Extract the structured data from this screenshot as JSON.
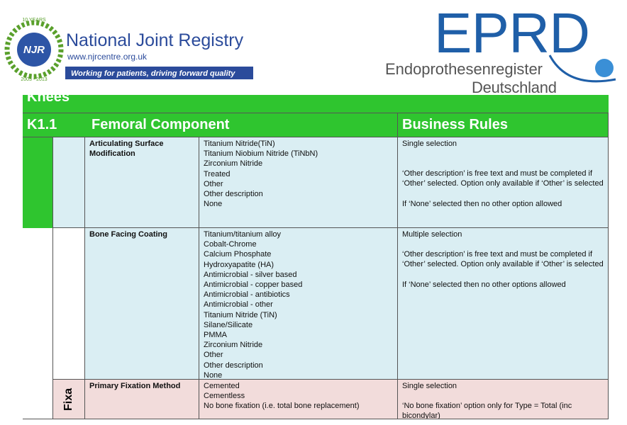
{
  "header": {
    "njr": {
      "years": "10 YEARS",
      "badge": "NJR",
      "dates": "2003 - 2013",
      "name": "National Joint Registry",
      "url": "www.njrcentre.org.uk",
      "tagline": "Working for patients, driving forward quality"
    },
    "eprd": {
      "name": "EPRD",
      "line1": "Endoprothesenregister",
      "line2": "Deutschland"
    }
  },
  "table": {
    "section": "Knees",
    "code": "K1.1",
    "title": "Femoral Component",
    "rules_header": "Business Rules",
    "rows": [
      {
        "field": "Articulating Surface Modification",
        "options": [
          "Titanium Nitride(TiN)",
          "Titanium Niobium Nitride (TiNbN)",
          "Zirconium Nitride",
          "Treated",
          "Other",
          "Other description",
          "None"
        ],
        "rules": [
          "Single selection",
          "‘Other description’ is free text and must be completed if ‘Other’ selected. Option only available if ‘Other’ is selected",
          "If ‘None’ selected then no other option allowed"
        ]
      },
      {
        "field": "Bone Facing Coating",
        "options": [
          "Titanium/titanium alloy",
          "Cobalt-Chrome",
          "Calcium Phosphate",
          "Hydroxyapatite (HA)",
          "Antimicrobial - silver based",
          "Antimicrobial - copper based",
          "Antimicrobial - antibiotics",
          "Antimicrobial - other",
          "Titanium Nitride (TiN)",
          "Silane/Silicate",
          "PMMA",
          "Zirconium Nitride",
          "Other",
          "Other description",
          "None"
        ],
        "rules": [
          "Multiple selection",
          "‘Other description’ is free text and must be completed if ‘Other’ selected. Option only available if ‘Other’ is selected",
          "If ‘None’ selected then no other options allowed"
        ]
      },
      {
        "group": "Fixa",
        "field": "Primary Fixation Method",
        "options": [
          "Cemented",
          "Cementless",
          "No bone fixation (i.e. total bone replacement)"
        ],
        "rules": [
          "Single selection",
          "‘No bone fixation’ option only for Type = Total (inc bicondylar)"
        ]
      }
    ]
  }
}
